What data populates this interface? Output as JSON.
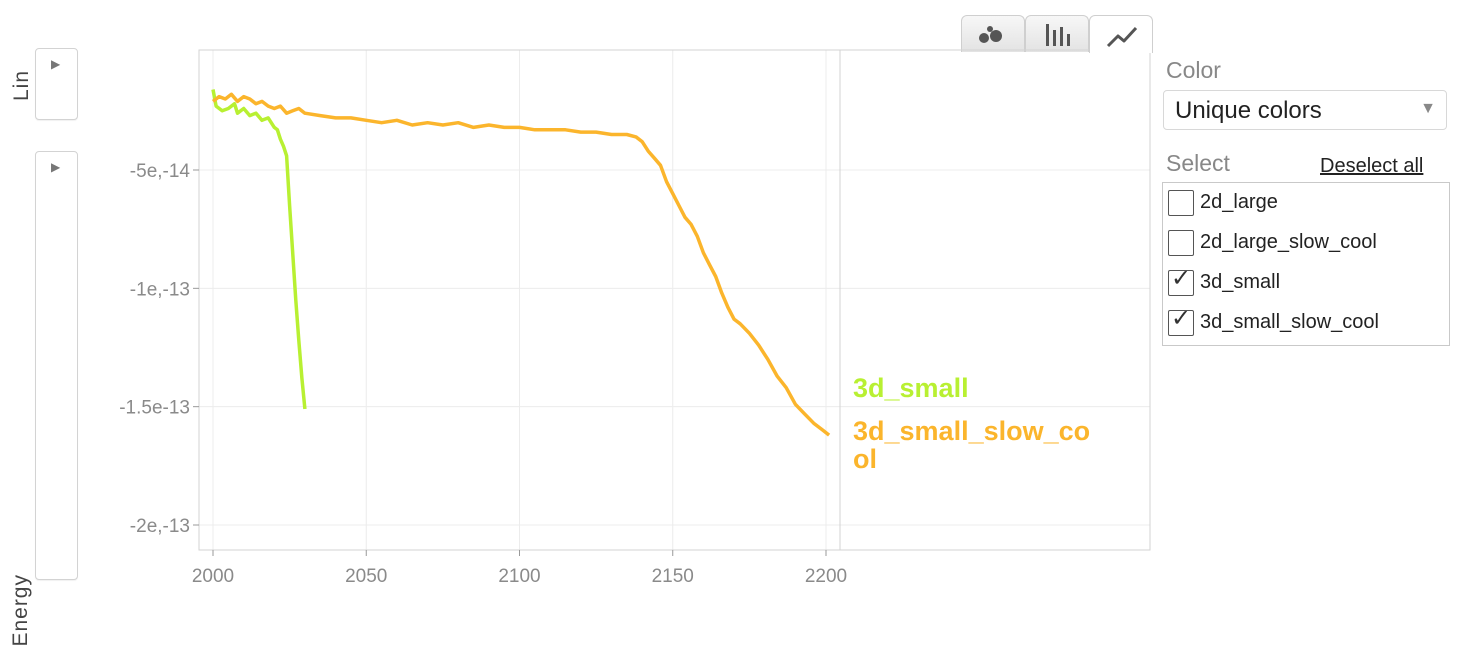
{
  "controls": {
    "scale_label": "Lin",
    "y_axis_label": "Energy"
  },
  "chart_type_tabs": [
    {
      "name": "scatter",
      "icon": "scatter-icon",
      "active": false
    },
    {
      "name": "bar",
      "icon": "bar-chart-icon",
      "active": false
    },
    {
      "name": "line",
      "icon": "line-chart-icon",
      "active": true
    }
  ],
  "panel": {
    "color_title": "Color",
    "color_value": "Unique colors",
    "select_title": "Select",
    "deselect_all": "Deselect all",
    "series": [
      {
        "label": "2d_large",
        "checked": false
      },
      {
        "label": "2d_large_slow_cool",
        "checked": false
      },
      {
        "label": "3d_small",
        "checked": true
      },
      {
        "label": "3d_small_slow_cool",
        "checked": true
      }
    ]
  },
  "colors": {
    "3d_small": "#b8f032",
    "3d_small_slow_cool": "#fbb52c",
    "grid": "#ececec",
    "axis_text": "#8a8a8a"
  },
  "chart_data": {
    "type": "line",
    "title": "",
    "xlabel": "",
    "ylabel": "Energy",
    "xlim": [
      1997,
      2204
    ],
    "ylim": [
      -2.1e-13,
      -1e-14
    ],
    "x_ticks": [
      2000,
      2050,
      2100,
      2150,
      2200
    ],
    "y_ticks": [
      {
        "value": -5e-14,
        "label": "-5e,-14"
      },
      {
        "value": -1e-13,
        "label": "-1e,-13"
      },
      {
        "value": -1.5e-13,
        "label": "-1.5e-13"
      },
      {
        "value": -2e-13,
        "label": "-2e,-13"
      }
    ],
    "grid": true,
    "legend": "end-of-line labels",
    "series": [
      {
        "name": "3d_small",
        "x": [
          2000,
          2001,
          2003,
          2005,
          2007,
          2008,
          2010,
          2012,
          2014,
          2016,
          2018,
          2020,
          2021,
          2022,
          2023,
          2024,
          2025,
          2026,
          2027,
          2028,
          2029,
          2030
        ],
        "y": [
          -1.6e-14,
          -2.3e-14,
          -2.5e-14,
          -2.4e-14,
          -2.2e-14,
          -2.6e-14,
          -2.4e-14,
          -2.7e-14,
          -2.6e-14,
          -2.9e-14,
          -2.8e-14,
          -3.2e-14,
          -3.3e-14,
          -3.7e-14,
          -4e-14,
          -4.4e-14,
          -6.5e-14,
          -8.5e-14,
          -1.05e-13,
          -1.22e-13,
          -1.38e-13,
          -1.51e-13
        ]
      },
      {
        "name": "3d_small_slow_cool",
        "x": [
          2000,
          2002,
          2004,
          2006,
          2008,
          2010,
          2012,
          2014,
          2016,
          2018,
          2020,
          2022,
          2024,
          2026,
          2028,
          2030,
          2035,
          2040,
          2045,
          2050,
          2055,
          2060,
          2065,
          2070,
          2075,
          2080,
          2085,
          2090,
          2095,
          2100,
          2105,
          2110,
          2115,
          2120,
          2125,
          2130,
          2135,
          2138,
          2140,
          2142,
          2144,
          2146,
          2148,
          2150,
          2152,
          2154,
          2156,
          2158,
          2160,
          2162,
          2164,
          2166,
          2168,
          2170,
          2172,
          2175,
          2178,
          2181,
          2184,
          2187,
          2190,
          2193,
          2196,
          2199,
          2201
        ],
        "y": [
          -2.1e-14,
          -1.9e-14,
          -2e-14,
          -1.8e-14,
          -2.1e-14,
          -1.9e-14,
          -2e-14,
          -2.2e-14,
          -2.1e-14,
          -2.3e-14,
          -2.4e-14,
          -2.3e-14,
          -2.6e-14,
          -2.5e-14,
          -2.4e-14,
          -2.6e-14,
          -2.7e-14,
          -2.8e-14,
          -2.8e-14,
          -2.9e-14,
          -3e-14,
          -2.9e-14,
          -3.1e-14,
          -3e-14,
          -3.1e-14,
          -3e-14,
          -3.2e-14,
          -3.1e-14,
          -3.2e-14,
          -3.2e-14,
          -3.3e-14,
          -3.3e-14,
          -3.3e-14,
          -3.4e-14,
          -3.4e-14,
          -3.5e-14,
          -3.5e-14,
          -3.6e-14,
          -3.8e-14,
          -4.2e-14,
          -4.5e-14,
          -4.8e-14,
          -5.5e-14,
          -6e-14,
          -6.5e-14,
          -7e-14,
          -7.3e-14,
          -7.8e-14,
          -8.5e-14,
          -9e-14,
          -9.5e-14,
          -1.02e-13,
          -1.08e-13,
          -1.13e-13,
          -1.15e-13,
          -1.19e-13,
          -1.24e-13,
          -1.3e-13,
          -1.37e-13,
          -1.42e-13,
          -1.49e-13,
          -1.53e-13,
          -1.57e-13,
          -1.6e-13,
          -1.62e-13
        ]
      }
    ]
  }
}
